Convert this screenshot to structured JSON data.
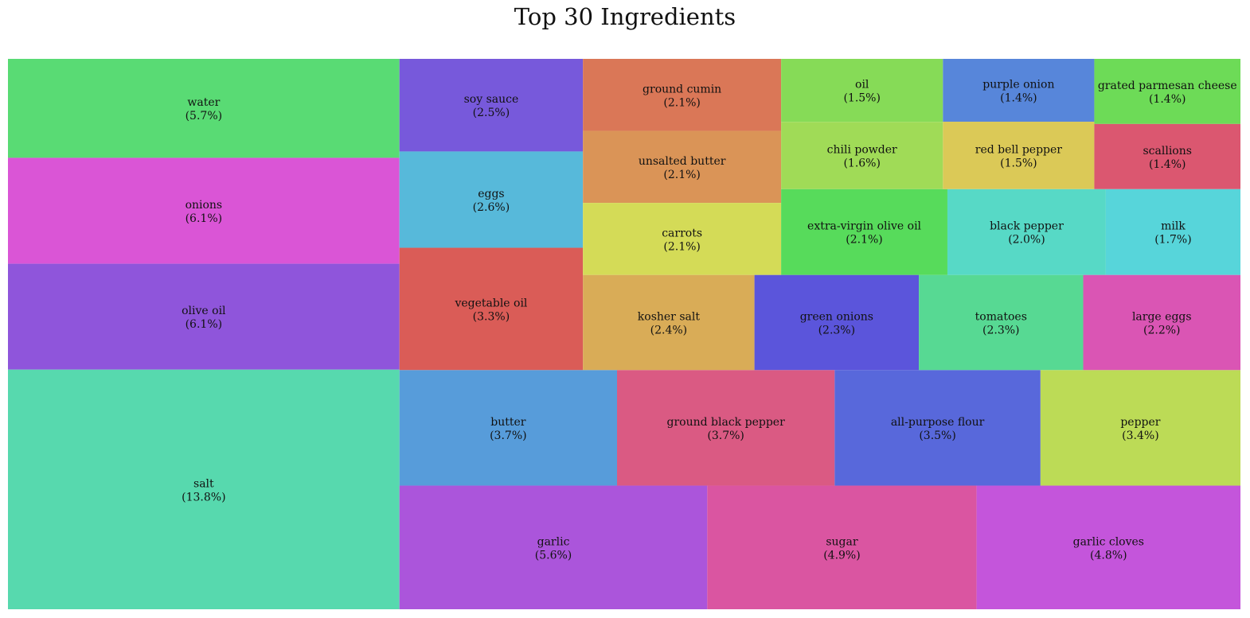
{
  "chart_data": {
    "type": "treemap",
    "title": "Top 30 Ingredients",
    "items": [
      {
        "name": "salt",
        "label": "(13.8%)",
        "value": 13.8,
        "color": "#57d9ae"
      },
      {
        "name": "olive oil",
        "label": "(6.1%)",
        "value": 6.1,
        "color": "#8f55db"
      },
      {
        "name": "onions",
        "label": "(6.1%)",
        "value": 6.1,
        "color": "#da55d6"
      },
      {
        "name": "water",
        "label": "(5.7%)",
        "value": 5.7,
        "color": "#59db74"
      },
      {
        "name": "garlic",
        "label": "(5.6%)",
        "value": 5.6,
        "color": "#ab55db"
      },
      {
        "name": "sugar",
        "label": "(4.9%)",
        "value": 4.9,
        "color": "#da55a1"
      },
      {
        "name": "garlic cloves",
        "label": "(4.8%)",
        "value": 4.8,
        "color": "#c455db"
      },
      {
        "name": "butter",
        "label": "(3.7%)",
        "value": 3.7,
        "color": "#579cda"
      },
      {
        "name": "ground black pepper",
        "label": "(3.7%)",
        "value": 3.7,
        "color": "#da5a83"
      },
      {
        "name": "all-purpose flour",
        "label": "(3.5%)",
        "value": 3.5,
        "color": "#5868db"
      },
      {
        "name": "pepper",
        "label": "(3.4%)",
        "value": 3.4,
        "color": "#bcdb56"
      },
      {
        "name": "vegetable oil",
        "label": "(3.3%)",
        "value": 3.3,
        "color": "#da5c57"
      },
      {
        "name": "eggs",
        "label": "(2.6%)",
        "value": 2.6,
        "color": "#57b9da"
      },
      {
        "name": "soy sauce",
        "label": "(2.5%)",
        "value": 2.5,
        "color": "#7759db"
      },
      {
        "name": "kosher salt",
        "label": "(2.4%)",
        "value": 2.4,
        "color": "#d9ac57"
      },
      {
        "name": "green onions",
        "label": "(2.3%)",
        "value": 2.3,
        "color": "#5b55db"
      },
      {
        "name": "tomatoes",
        "label": "(2.3%)",
        "value": 2.3,
        "color": "#57d993"
      },
      {
        "name": "large eggs",
        "label": "(2.2%)",
        "value": 2.2,
        "color": "#da55b4"
      },
      {
        "name": "carrots",
        "label": "(2.1%)",
        "value": 2.1,
        "color": "#d4db57"
      },
      {
        "name": "unsalted butter",
        "label": "(2.1%)",
        "value": 2.1,
        "color": "#da9457"
      },
      {
        "name": "ground cumin",
        "label": "(2.1%)",
        "value": 2.1,
        "color": "#da7757"
      },
      {
        "name": "extra-virgin olive oil",
        "label": "(2.1%)",
        "value": 2.1,
        "color": "#57db5b"
      },
      {
        "name": "black pepper",
        "label": "(2.0%)",
        "value": 2.0,
        "color": "#57d9c6"
      },
      {
        "name": "milk",
        "label": "(1.7%)",
        "value": 1.7,
        "color": "#57d5da"
      },
      {
        "name": "chili powder",
        "label": "(1.6%)",
        "value": 1.6,
        "color": "#a0db57"
      },
      {
        "name": "oil",
        "label": "(1.5%)",
        "value": 1.5,
        "color": "#86db57"
      },
      {
        "name": "red bell pepper",
        "label": "(1.5%)",
        "value": 1.5,
        "color": "#dbc957"
      },
      {
        "name": "purple onion",
        "label": "(1.4%)",
        "value": 1.4,
        "color": "#5786da"
      },
      {
        "name": "grated parmesan cheese",
        "label": "(1.4%)",
        "value": 1.4,
        "color": "#6ddb57"
      },
      {
        "name": "scallions",
        "label": "(1.4%)",
        "value": 1.4,
        "color": "#db5770"
      }
    ]
  }
}
